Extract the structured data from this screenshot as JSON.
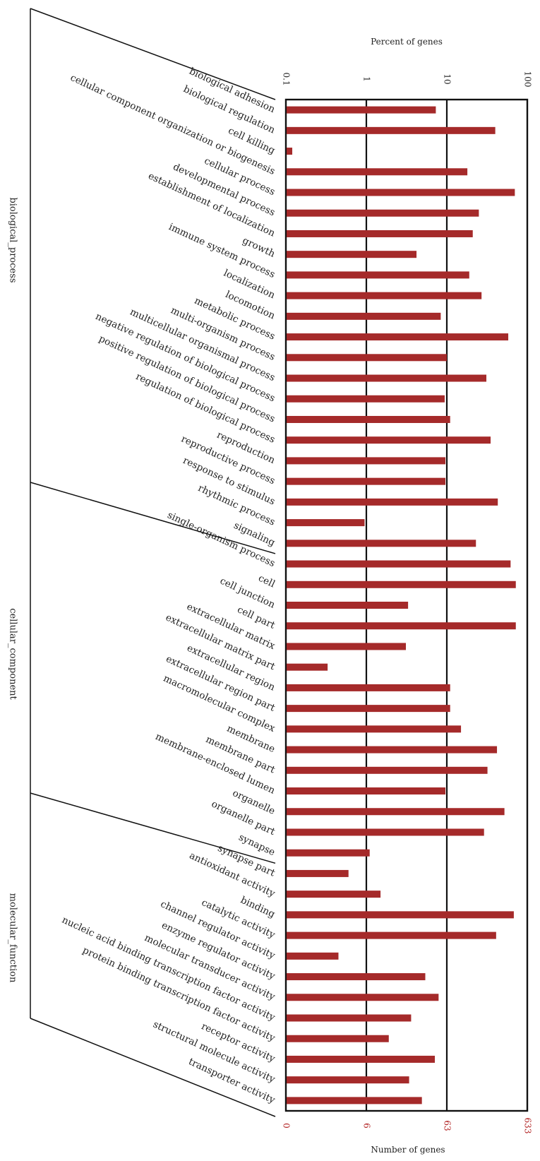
{
  "chart_data": {
    "type": "bar",
    "orientation": "horizontal",
    "top_axis_title": "Percent of genes",
    "bottom_axis_title": "Number of genes",
    "top_ticks": [
      "0.1",
      "1",
      "10",
      "100"
    ],
    "bottom_ticks": [
      "0",
      "6",
      "63",
      "633"
    ],
    "x_scale": "log",
    "xlim": [
      0.1,
      100
    ],
    "grid": "vertical lines at 1 and 10",
    "bar_color": "#A52A2A",
    "bottom_tick_color": "#B22222",
    "groups": [
      {
        "name": "biological_process",
        "start": 0,
        "count": 22
      },
      {
        "name": "cellular_component",
        "start": 22,
        "count": 15
      },
      {
        "name": "molecular_function",
        "start": 37,
        "count": 11
      }
    ],
    "categories": [
      "biological adhesion",
      "biological regulation",
      "cell killing",
      "cellular component organization or biogenesis",
      "cellular process",
      "developmental process",
      "establishment of localization",
      "growth",
      "immune system process",
      "localization",
      "locomotion",
      "metabolic process",
      "multi-organism process",
      "multicellular organismal process",
      "negative regulation of biological process",
      "positive regulation of biological process",
      "regulation of biological process",
      "reproduction",
      "reproductive process",
      "response to stimulus",
      "rhythmic process",
      "signaling",
      "single-organism process",
      "cell",
      "cell junction",
      "cell part",
      "extracellular matrix",
      "extracellular matrix part",
      "extracellular region",
      "extracellular region part",
      "macromolecular complex",
      "membrane",
      "membrane part",
      "membrane-enclosed lumen",
      "organelle",
      "organelle part",
      "synapse",
      "synapse part",
      "antioxidant activity",
      "binding",
      "catalytic activity",
      "channel regulator activity",
      "enzyme regulator activity",
      "molecular transducer activity",
      "nucleic acid binding transcription factor activity",
      "protein binding transcription factor activity",
      "receptor activity",
      "structural molecule activity",
      "transporter activity"
    ],
    "values": [
      7.3,
      40,
      0.12,
      18,
      70,
      25,
      21,
      4.2,
      19,
      27,
      8.4,
      58,
      10,
      31,
      9.4,
      11,
      35,
      9.6,
      9.6,
      43,
      0.95,
      23,
      62,
      72,
      3.3,
      72,
      3.1,
      0.33,
      11,
      11,
      15,
      42,
      32,
      9.6,
      52,
      29,
      1.1,
      0.6,
      1.5,
      68,
      41,
      0.45,
      5.4,
      7.9,
      3.6,
      1.9,
      7.1,
      3.4,
      4.9
    ]
  }
}
